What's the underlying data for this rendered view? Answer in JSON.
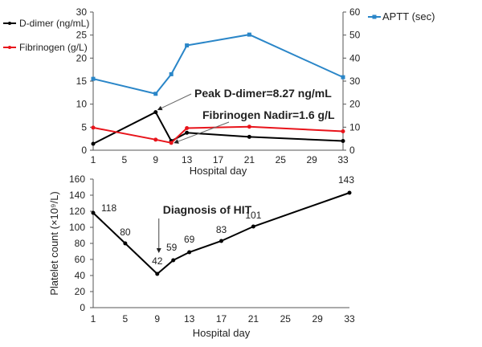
{
  "chart_data": [
    {
      "type": "line",
      "x": [
        1,
        9,
        11,
        13,
        21,
        33
      ],
      "xlabel": "Hospital day",
      "xticks": [
        1,
        5,
        9,
        13,
        17,
        21,
        25,
        29,
        33
      ],
      "ylim": [
        0,
        30
      ],
      "yticks": [
        0,
        5,
        10,
        15,
        20,
        25,
        30
      ],
      "y2lim": [
        0,
        60
      ],
      "y2ticks": [
        0,
        10,
        20,
        30,
        40,
        50,
        60
      ],
      "series": [
        {
          "name": "D-dimer (ng/mL)",
          "axis": "left",
          "color": "#000000",
          "values": [
            1.4,
            8.27,
            2.0,
            3.8,
            2.9,
            2.0
          ]
        },
        {
          "name": "Fibrinogen (g/L)",
          "axis": "left",
          "color": "#e8141b",
          "values": [
            4.9,
            2.3,
            1.6,
            4.8,
            5.1,
            4.1
          ]
        },
        {
          "name": "APTT (sec)",
          "axis": "right",
          "color": "#2a86c8",
          "values": [
            31,
            24.5,
            33,
            45.5,
            50.2,
            31.7
          ]
        }
      ],
      "annotations": [
        {
          "text": "Peak D-dimer=8.27 ng/mL",
          "x": 9,
          "y": 8.27
        },
        {
          "text": "Fibrinogen Nadir=1.6 g/L",
          "x": 11,
          "y": 1.6
        }
      ]
    },
    {
      "type": "line",
      "x": [
        1,
        5,
        9,
        11,
        13,
        17,
        21,
        33
      ],
      "values": [
        118,
        80,
        42,
        59,
        69,
        83,
        101,
        143
      ],
      "data_labels": [
        "118",
        "80",
        "42",
        "59",
        "69",
        "83",
        "101",
        "143"
      ],
      "color": "#000000",
      "xlabel": "Hospital day",
      "ylabel": "Platelet count (×10⁹/L)",
      "xticks": [
        1,
        5,
        9,
        13,
        17,
        21,
        25,
        29,
        33
      ],
      "ylim": [
        0,
        160
      ],
      "yticks": [
        0,
        20,
        40,
        60,
        80,
        100,
        120,
        140,
        160
      ],
      "annotations": [
        {
          "text": "Diagnosis of HIT",
          "x": 9
        }
      ]
    }
  ]
}
